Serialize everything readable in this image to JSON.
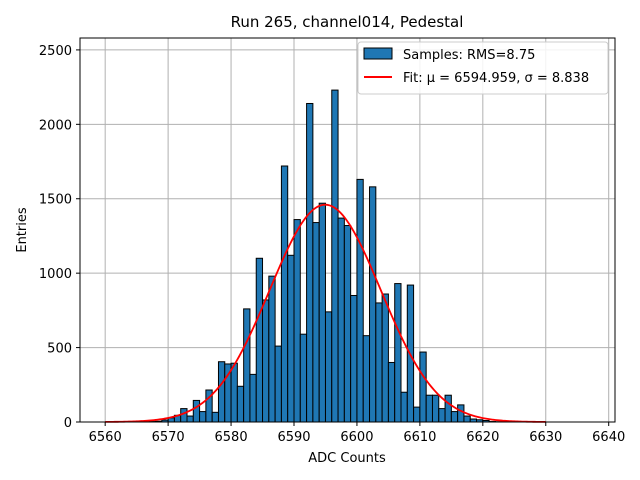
{
  "chart_data": {
    "type": "bar",
    "title": "Run 265, channel014, Pedestal",
    "xlabel": "ADC Counts",
    "ylabel": "Entries",
    "xlim": [
      6556,
      6641
    ],
    "ylim": [
      0,
      2580
    ],
    "xticks": [
      6560,
      6570,
      6580,
      6590,
      6600,
      6610,
      6620,
      6630,
      6640
    ],
    "yticks": [
      0,
      500,
      1000,
      1500,
      2000,
      2500
    ],
    "grid": true,
    "legend_position": "top-right",
    "histogram": {
      "name": "Samples: RMS=8.75",
      "color": "#1f77b4",
      "edge_color": "#000000",
      "bin_width": 1,
      "x": [
        6566,
        6567,
        6568,
        6569,
        6570,
        6571,
        6572,
        6573,
        6574,
        6575,
        6576,
        6577,
        6578,
        6579,
        6580,
        6581,
        6582,
        6583,
        6584,
        6585,
        6586,
        6587,
        6588,
        6589,
        6590,
        6591,
        6592,
        6593,
        6594,
        6595,
        6596,
        6597,
        6598,
        6599,
        6600,
        6601,
        6602,
        6603,
        6604,
        6605,
        6606,
        6607,
        6608,
        6609,
        6610,
        6611,
        6612,
        6613,
        6614,
        6615,
        6616,
        6617,
        6618,
        6619,
        6620,
        6621,
        6622,
        6623
      ],
      "values": [
        3,
        3,
        5,
        13,
        28,
        45,
        90,
        40,
        145,
        70,
        215,
        65,
        405,
        390,
        395,
        240,
        760,
        320,
        1100,
        820,
        980,
        510,
        1720,
        1120,
        1360,
        590,
        2140,
        1340,
        1470,
        740,
        2230,
        1370,
        1320,
        850,
        1630,
        580,
        1580,
        800,
        860,
        400,
        930,
        200,
        920,
        100,
        470,
        180,
        180,
        90,
        180,
        70,
        115,
        40,
        20,
        15,
        10,
        3,
        2,
        1
      ]
    },
    "fit": {
      "name": "Fit: μ = 6594.959, σ = 8.838",
      "color": "#ff0000",
      "mu": 6594.959,
      "sigma": 8.838,
      "amplitude": 1460,
      "range": [
        6560,
        6630
      ]
    }
  }
}
